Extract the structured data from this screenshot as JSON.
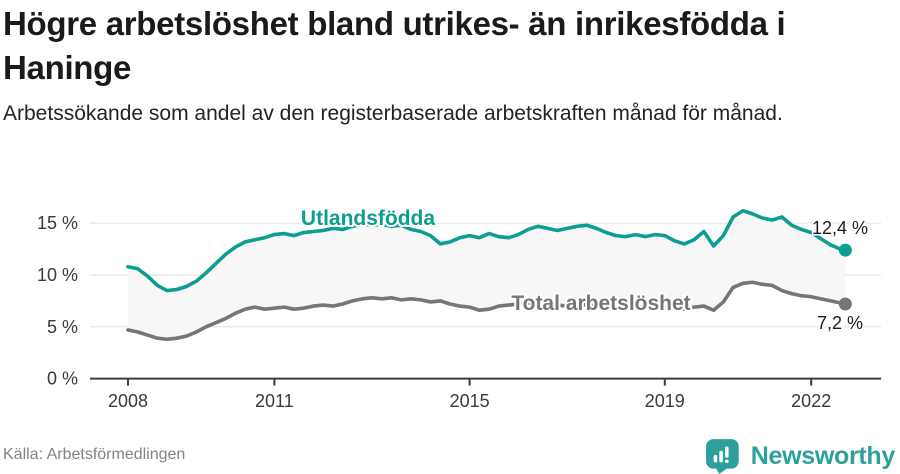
{
  "header": {
    "title": "Högre arbetslöshet bland utrikes- än inrikesfödda i Haninge",
    "subtitle": "Arbetssökande som andel av den registerbaserade arbetskraften månad för månad."
  },
  "footer": {
    "source": "Källa: Arbetsförmedlingen",
    "logo_text": "Newsworthy",
    "logo_color": "#2da09c"
  },
  "chart_data": {
    "type": "line",
    "title": "Högre arbetslöshet bland utrikes- än inrikesfödda i Haninge",
    "subtitle": "Arbetssökande som andel av den registerbaserade arbetskraften månad för månad.",
    "x_unit": "decimal year (monthly series, Jan 2008 – Sep 2022)",
    "y_unit": "percent of registered labour force",
    "xlim": [
      2008,
      2022.7
    ],
    "ylim": [
      0,
      17
    ],
    "grid": "horizontal only",
    "legend_position": "inline labels on lines",
    "xticks": [
      {
        "value": 2008,
        "label": "2008"
      },
      {
        "value": 2011,
        "label": "2011"
      },
      {
        "value": 2015,
        "label": "2015"
      },
      {
        "value": 2019,
        "label": "2019"
      },
      {
        "value": 2022,
        "label": "2022"
      }
    ],
    "yticks": [
      {
        "value": 0,
        "label": "0 %"
      },
      {
        "value": 5,
        "label": "5 %"
      },
      {
        "value": 10,
        "label": "10 %"
      },
      {
        "value": 15,
        "label": "15 %"
      }
    ],
    "colors": {
      "utlandsfodda_line": "#0d9e92",
      "total_line": "#75757b",
      "fill_between": "#f7f7f7",
      "grid": "#e4e4e4",
      "axis": "#3d3d3d",
      "tick_text": "#3a3a3a",
      "value_label_text": "#1c1c1c"
    },
    "series": [
      {
        "name": "Utlandsfödda",
        "color": "#0d9e92",
        "end_value": 12.4,
        "end_label": "12,4 %",
        "points": [
          [
            2008.0,
            10.8
          ],
          [
            2008.2,
            10.6
          ],
          [
            2008.4,
            9.9
          ],
          [
            2008.6,
            9.0
          ],
          [
            2008.8,
            8.5
          ],
          [
            2009.0,
            8.6
          ],
          [
            2009.2,
            8.9
          ],
          [
            2009.4,
            9.4
          ],
          [
            2009.6,
            10.2
          ],
          [
            2009.8,
            11.1
          ],
          [
            2010.0,
            12.0
          ],
          [
            2010.2,
            12.7
          ],
          [
            2010.4,
            13.2
          ],
          [
            2010.6,
            13.4
          ],
          [
            2010.8,
            13.6
          ],
          [
            2011.0,
            13.9
          ],
          [
            2011.2,
            14.0
          ],
          [
            2011.4,
            13.8
          ],
          [
            2011.6,
            14.1
          ],
          [
            2011.8,
            14.2
          ],
          [
            2012.0,
            14.3
          ],
          [
            2012.2,
            14.5
          ],
          [
            2012.4,
            14.4
          ],
          [
            2012.6,
            14.7
          ],
          [
            2012.8,
            14.9
          ],
          [
            2013.0,
            14.8
          ],
          [
            2013.2,
            14.9
          ],
          [
            2013.4,
            14.7
          ],
          [
            2013.6,
            14.8
          ],
          [
            2013.8,
            14.4
          ],
          [
            2014.0,
            14.2
          ],
          [
            2014.2,
            13.8
          ],
          [
            2014.4,
            13.0
          ],
          [
            2014.6,
            13.2
          ],
          [
            2014.8,
            13.6
          ],
          [
            2015.0,
            13.8
          ],
          [
            2015.2,
            13.6
          ],
          [
            2015.4,
            14.0
          ],
          [
            2015.6,
            13.7
          ],
          [
            2015.8,
            13.6
          ],
          [
            2016.0,
            13.9
          ],
          [
            2016.2,
            14.4
          ],
          [
            2016.4,
            14.7
          ],
          [
            2016.6,
            14.5
          ],
          [
            2016.8,
            14.3
          ],
          [
            2017.0,
            14.5
          ],
          [
            2017.2,
            14.7
          ],
          [
            2017.4,
            14.8
          ],
          [
            2017.6,
            14.5
          ],
          [
            2017.8,
            14.1
          ],
          [
            2018.0,
            13.8
          ],
          [
            2018.2,
            13.7
          ],
          [
            2018.4,
            13.9
          ],
          [
            2018.6,
            13.7
          ],
          [
            2018.8,
            13.9
          ],
          [
            2019.0,
            13.8
          ],
          [
            2019.2,
            13.3
          ],
          [
            2019.4,
            13.0
          ],
          [
            2019.6,
            13.4
          ],
          [
            2019.8,
            14.2
          ],
          [
            2020.0,
            12.8
          ],
          [
            2020.2,
            13.8
          ],
          [
            2020.4,
            15.6
          ],
          [
            2020.6,
            16.2
          ],
          [
            2020.8,
            15.9
          ],
          [
            2021.0,
            15.5
          ],
          [
            2021.2,
            15.3
          ],
          [
            2021.4,
            15.6
          ],
          [
            2021.6,
            14.8
          ],
          [
            2021.8,
            14.4
          ],
          [
            2022.0,
            14.1
          ],
          [
            2022.2,
            13.5
          ],
          [
            2022.4,
            12.9
          ],
          [
            2022.6,
            12.5
          ],
          [
            2022.7,
            12.4
          ]
        ]
      },
      {
        "name": "Total arbetslöshet",
        "color": "#75757b",
        "end_value": 7.2,
        "end_label": "7,2 %",
        "points": [
          [
            2008.0,
            4.7
          ],
          [
            2008.2,
            4.5
          ],
          [
            2008.4,
            4.2
          ],
          [
            2008.6,
            3.9
          ],
          [
            2008.8,
            3.8
          ],
          [
            2009.0,
            3.9
          ],
          [
            2009.2,
            4.1
          ],
          [
            2009.4,
            4.5
          ],
          [
            2009.6,
            5.0
          ],
          [
            2009.8,
            5.4
          ],
          [
            2010.0,
            5.8
          ],
          [
            2010.2,
            6.3
          ],
          [
            2010.4,
            6.7
          ],
          [
            2010.6,
            6.9
          ],
          [
            2010.8,
            6.7
          ],
          [
            2011.0,
            6.8
          ],
          [
            2011.2,
            6.9
          ],
          [
            2011.4,
            6.7
          ],
          [
            2011.6,
            6.8
          ],
          [
            2011.8,
            7.0
          ],
          [
            2012.0,
            7.1
          ],
          [
            2012.2,
            7.0
          ],
          [
            2012.4,
            7.2
          ],
          [
            2012.6,
            7.5
          ],
          [
            2012.8,
            7.7
          ],
          [
            2013.0,
            7.8
          ],
          [
            2013.2,
            7.7
          ],
          [
            2013.4,
            7.8
          ],
          [
            2013.6,
            7.6
          ],
          [
            2013.8,
            7.7
          ],
          [
            2014.0,
            7.6
          ],
          [
            2014.2,
            7.4
          ],
          [
            2014.4,
            7.5
          ],
          [
            2014.6,
            7.2
          ],
          [
            2014.8,
            7.0
          ],
          [
            2015.0,
            6.9
          ],
          [
            2015.2,
            6.6
          ],
          [
            2015.4,
            6.7
          ],
          [
            2015.6,
            7.0
          ],
          [
            2015.8,
            7.1
          ],
          [
            2016.0,
            7.2
          ],
          [
            2016.2,
            7.3
          ],
          [
            2016.4,
            7.1
          ],
          [
            2016.6,
            7.0
          ],
          [
            2016.8,
            7.1
          ],
          [
            2017.0,
            7.0
          ],
          [
            2017.2,
            7.2
          ],
          [
            2017.4,
            7.1
          ],
          [
            2017.6,
            7.0
          ],
          [
            2017.8,
            6.9
          ],
          [
            2018.0,
            6.8
          ],
          [
            2018.2,
            6.9
          ],
          [
            2018.4,
            6.8
          ],
          [
            2018.6,
            7.0
          ],
          [
            2018.8,
            6.9
          ],
          [
            2019.0,
            6.9
          ],
          [
            2019.2,
            6.8
          ],
          [
            2019.4,
            6.7
          ],
          [
            2019.6,
            6.9
          ],
          [
            2019.8,
            7.0
          ],
          [
            2020.0,
            6.6
          ],
          [
            2020.2,
            7.4
          ],
          [
            2020.4,
            8.8
          ],
          [
            2020.6,
            9.2
          ],
          [
            2020.8,
            9.3
          ],
          [
            2021.0,
            9.1
          ],
          [
            2021.2,
            9.0
          ],
          [
            2021.4,
            8.5
          ],
          [
            2021.6,
            8.2
          ],
          [
            2021.8,
            8.0
          ],
          [
            2022.0,
            7.9
          ],
          [
            2022.2,
            7.7
          ],
          [
            2022.4,
            7.5
          ],
          [
            2022.6,
            7.3
          ],
          [
            2022.7,
            7.2
          ]
        ]
      }
    ]
  }
}
